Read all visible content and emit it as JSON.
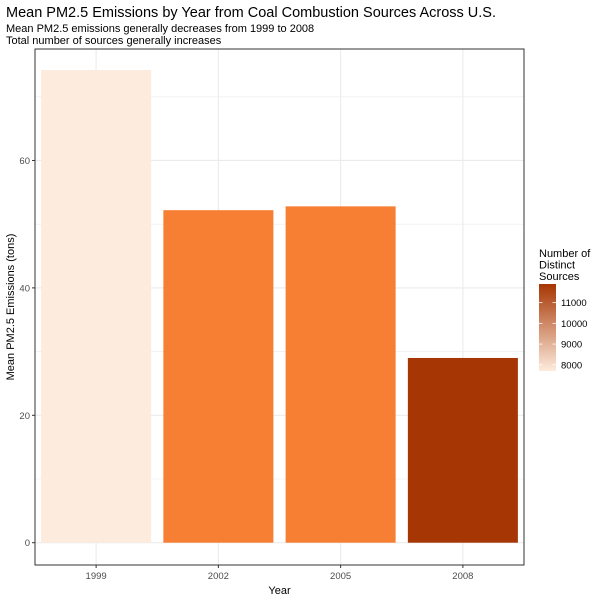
{
  "chart_data": {
    "type": "bar",
    "title": "Mean PM2.5 Emissions by Year from Coal Combustion Sources Across U.S.",
    "subtitle": "Mean PM2.5 emissions generally decreases from 1999 to 2008\nTotal number of sources generally increases",
    "xlabel": "Year",
    "ylabel": "Mean PM2.5 Emissions (tons)",
    "categories": [
      "1999",
      "2002",
      "2005",
      "2008"
    ],
    "values": [
      74.2,
      52.2,
      52.8,
      29.0
    ],
    "sources": [
      7700,
      10300,
      10300,
      11800
    ],
    "bar_colors": [
      "#fdebdd",
      "#f67f33",
      "#f67f33",
      "#a63603"
    ],
    "ylim": [
      -3.5,
      77.5
    ],
    "yticks": [
      0,
      20,
      40,
      60
    ],
    "grid": true,
    "legend": {
      "title": "Number of\nDistinct\nSources",
      "placement": "right",
      "ticks": [
        8000,
        9000,
        10000,
        11000
      ],
      "range": [
        7700,
        11900
      ],
      "low_color": "#fdebdd",
      "high_color": "#a63603"
    }
  }
}
